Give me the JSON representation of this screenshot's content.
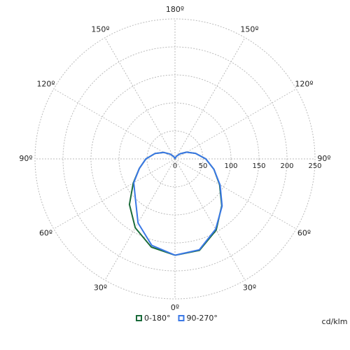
{
  "chart_data": {
    "type": "polar",
    "unit_label": "cd/klm",
    "angles": [
      0,
      15,
      30,
      45,
      60,
      75,
      90,
      105,
      120,
      135,
      150,
      165,
      180
    ],
    "rlim": [
      0,
      250
    ],
    "rticks": [
      0,
      50,
      100,
      150,
      200,
      250
    ],
    "angle_ticks": [
      {
        "value": 0,
        "label": "0º"
      },
      {
        "value": 30,
        "label": "30º"
      },
      {
        "value": 60,
        "label": "60º"
      },
      {
        "value": 90,
        "label": "90º"
      },
      {
        "value": 120,
        "label": "120º"
      },
      {
        "value": 150,
        "label": "150º"
      },
      {
        "value": 180,
        "label": "180º"
      }
    ],
    "grid": true,
    "series": [
      {
        "name": "0-180°",
        "color": "#1a6b3a",
        "right": [
          172,
          169,
          147,
          118,
          92,
          72,
          55,
          38,
          24,
          13,
          6,
          2,
          0
        ],
        "left": [
          172,
          163,
          142,
          115,
          86,
          66,
          52,
          37,
          23,
          12,
          5,
          2,
          0
        ]
      },
      {
        "name": "90-270°",
        "color": "#3a78e6",
        "right": [
          172,
          168,
          145,
          119,
          93,
          72,
          55,
          38,
          24,
          13,
          6,
          2,
          0
        ],
        "left": [
          172,
          160,
          132,
          100,
          85,
          66,
          52,
          37,
          23,
          12,
          5,
          2,
          0
        ]
      }
    ]
  }
}
